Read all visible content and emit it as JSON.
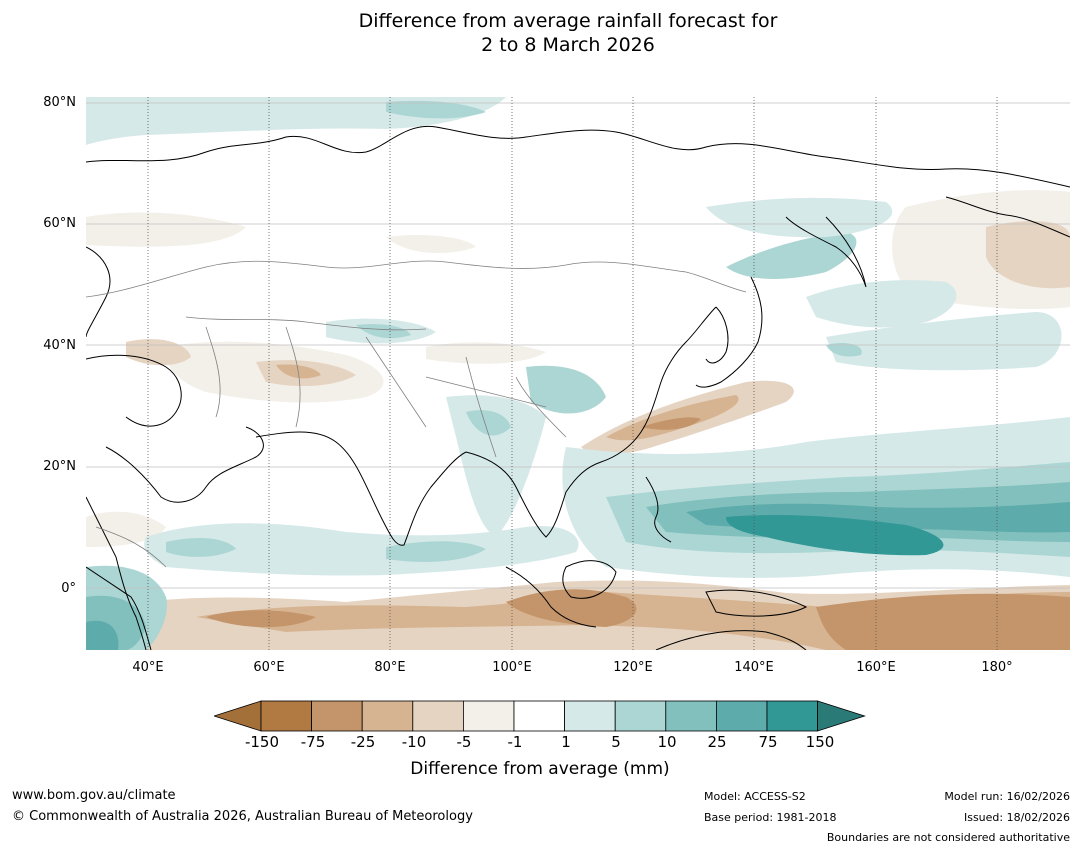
{
  "title_line1": "Difference from average rainfall forecast for",
  "title_line2": "2 to 8 March 2026",
  "lat_labels": [
    "80°N",
    "60°N",
    "40°N",
    "20°N",
    "0°"
  ],
  "lon_labels": [
    "40°E",
    "60°E",
    "80°E",
    "100°E",
    "120°E",
    "140°E",
    "160°E",
    "180°"
  ],
  "colorbar": {
    "labels": [
      "-150",
      "-75",
      "-25",
      "-10",
      "-5",
      "-1",
      "1",
      "5",
      "10",
      "25",
      "75",
      "150"
    ],
    "colors": [
      "#a4703a",
      "#b07a42",
      "#c4956a",
      "#d6b492",
      "#e6d4c2",
      "#f3efe9",
      "#ffffff",
      "#d5e9e8",
      "#acd6d4",
      "#82c0bd",
      "#5dabaa",
      "#329896",
      "#2a7a78"
    ],
    "title": "Difference from average (mm)"
  },
  "footer": {
    "website": "www.bom.gov.au/climate",
    "copyright": "© Commonwealth of Australia 2026, Australian Bureau of Meteorology",
    "model": "Model: ACCESS-S2",
    "base_period": "Base period: 1981-2018",
    "model_run": "Model run: 16/02/2026",
    "issued": "Issued: 18/02/2026",
    "disclaimer": "Boundaries are not considered authoritative"
  }
}
